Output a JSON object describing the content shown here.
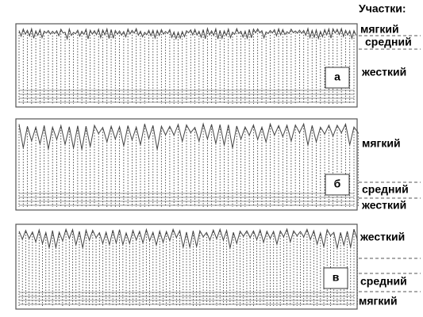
{
  "heading": "Участки:",
  "panels": [
    {
      "letter": "а",
      "zones": [
        "мягкий",
        "средний",
        "жесткий"
      ]
    },
    {
      "letter": "б",
      "zones": [
        "мягкий",
        "средний",
        "жесткий"
      ]
    },
    {
      "letter": "в",
      "zones": [
        "жесткий",
        "средний",
        "мягкий"
      ]
    }
  ]
}
